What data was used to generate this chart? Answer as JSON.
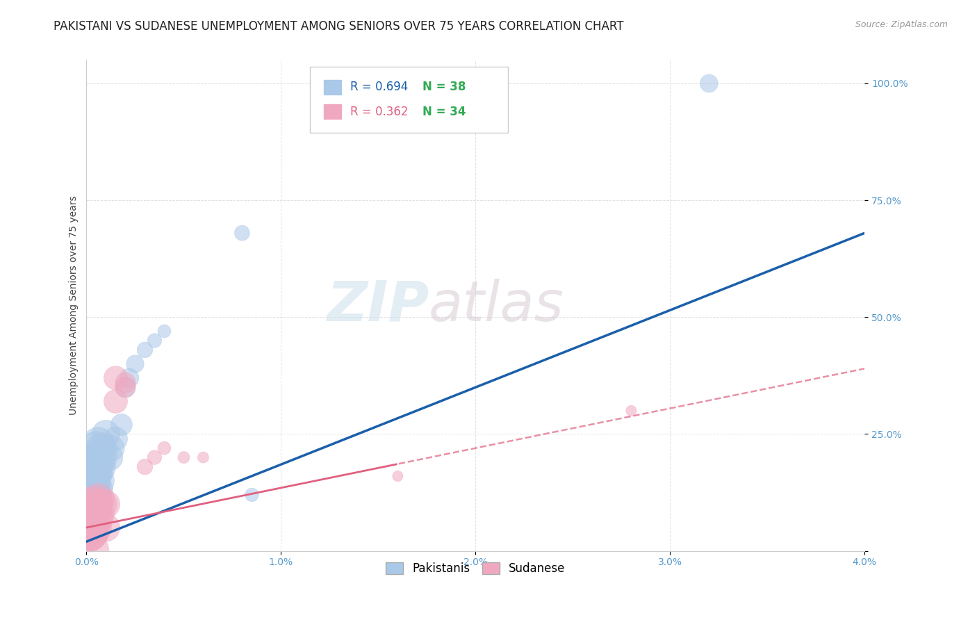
{
  "title": "PAKISTANI VS SUDANESE UNEMPLOYMENT AMONG SENIORS OVER 75 YEARS CORRELATION CHART",
  "source": "Source: ZipAtlas.com",
  "ylabel": "Unemployment Among Seniors over 75 years",
  "xlim": [
    0.0,
    0.04
  ],
  "ylim": [
    0.0,
    1.05
  ],
  "xticks": [
    0.0,
    0.01,
    0.02,
    0.03,
    0.04
  ],
  "xtick_labels": [
    "0.0%",
    "1.0%",
    "2.0%",
    "3.0%",
    "4.0%"
  ],
  "yticks": [
    0.0,
    0.25,
    0.5,
    0.75,
    1.0
  ],
  "ytick_labels": [
    "",
    "25.0%",
    "50.0%",
    "75.0%",
    "100.0%"
  ],
  "pakistani_R": 0.694,
  "pakistani_N": 38,
  "sudanese_R": 0.362,
  "sudanese_N": 34,
  "pakistani_color": "#aac8e8",
  "pakistani_line_color": "#1a5faa",
  "sudanese_color": "#f0a8c0",
  "sudanese_line_color": "#e06080",
  "pakistani_scatter_x": [
    5e-05,
    0.0001,
    0.0001,
    0.00015,
    0.00015,
    0.0002,
    0.0002,
    0.0002,
    0.0003,
    0.0003,
    0.0003,
    0.0003,
    0.0004,
    0.0004,
    0.0004,
    0.0005,
    0.0005,
    0.0005,
    0.0006,
    0.0006,
    0.0006,
    0.0007,
    0.0008,
    0.0008,
    0.001,
    0.0012,
    0.0013,
    0.0015,
    0.0018,
    0.002,
    0.0022,
    0.0025,
    0.003,
    0.0035,
    0.004,
    0.032,
    0.008,
    0.0085
  ],
  "pakistani_scatter_y": [
    0.06,
    0.07,
    0.1,
    0.09,
    0.13,
    0.08,
    0.12,
    0.16,
    0.1,
    0.14,
    0.17,
    0.19,
    0.12,
    0.16,
    0.2,
    0.13,
    0.17,
    0.22,
    0.15,
    0.19,
    0.23,
    0.18,
    0.2,
    0.22,
    0.25,
    0.2,
    0.22,
    0.24,
    0.27,
    0.35,
    0.37,
    0.4,
    0.43,
    0.45,
    0.47,
    1.0,
    0.68,
    0.12
  ],
  "sudanese_scatter_x": [
    3e-05,
    5e-05,
    8e-05,
    0.0001,
    0.0001,
    0.00012,
    0.00015,
    0.00015,
    0.0002,
    0.0002,
    0.0002,
    0.0003,
    0.0003,
    0.0004,
    0.0004,
    0.0004,
    0.0005,
    0.0005,
    0.0006,
    0.0006,
    0.0008,
    0.001,
    0.001,
    0.0015,
    0.0015,
    0.002,
    0.002,
    0.003,
    0.0035,
    0.004,
    0.005,
    0.006,
    0.016,
    0.028
  ],
  "sudanese_scatter_y": [
    0.04,
    0.05,
    0.06,
    0.04,
    0.07,
    0.05,
    0.04,
    0.07,
    0.0,
    0.05,
    0.08,
    0.06,
    0.09,
    0.05,
    0.08,
    0.1,
    0.07,
    0.1,
    0.08,
    0.11,
    0.1,
    0.1,
    0.05,
    0.32,
    0.37,
    0.35,
    0.36,
    0.18,
    0.2,
    0.22,
    0.2,
    0.2,
    0.16,
    0.3
  ],
  "pakistani_reg_slope": 16.5,
  "pakistani_reg_intercept": 0.02,
  "sudanese_reg_slope": 8.5,
  "sudanese_reg_intercept": 0.05,
  "watermark_part1": "ZIP",
  "watermark_part2": "atlas",
  "bg_color": "#ffffff",
  "grid_color": "#dddddd",
  "title_fontsize": 12,
  "ylabel_fontsize": 10,
  "tick_fontsize": 10,
  "legend_fontsize": 12,
  "source_fontsize": 9,
  "tick_color": "#5599cc",
  "title_color": "#222222",
  "source_color": "#999999"
}
